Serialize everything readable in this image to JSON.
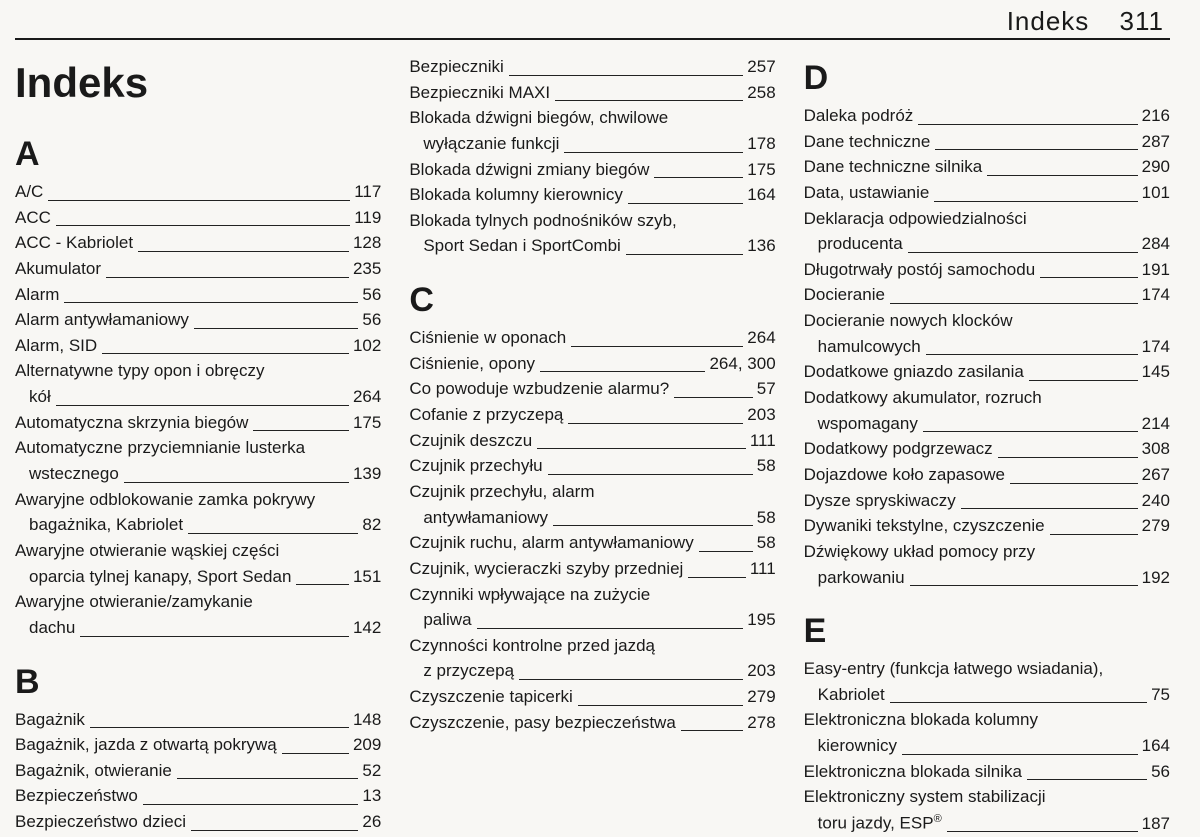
{
  "header": {
    "title": "Indeks",
    "page_number": "311"
  },
  "main_title": "Indeks",
  "columns": [
    {
      "groups": [
        {
          "letter": "A",
          "entries": [
            {
              "lines": [
                "A/C"
              ],
              "page": "117"
            },
            {
              "lines": [
                "ACC"
              ],
              "page": "119"
            },
            {
              "lines": [
                "ACC - Kabriolet"
              ],
              "page": "128"
            },
            {
              "lines": [
                "Akumulator"
              ],
              "page": "235"
            },
            {
              "lines": [
                "Alarm"
              ],
              "page": "56"
            },
            {
              "lines": [
                "Alarm antywłamaniowy"
              ],
              "page": "56"
            },
            {
              "lines": [
                "Alarm, SID"
              ],
              "page": "102"
            },
            {
              "lines": [
                "Alternatywne typy opon i obręczy",
                "kół"
              ],
              "page": "264"
            },
            {
              "lines": [
                "Automatyczna skrzynia biegów"
              ],
              "page": "175"
            },
            {
              "lines": [
                "Automatyczne przyciemnianie lusterka",
                "wstecznego"
              ],
              "page": "139"
            },
            {
              "lines": [
                "Awaryjne odblokowanie zamka pokrywy",
                "bagażnika, Kabriolet"
              ],
              "page": "82"
            },
            {
              "lines": [
                "Awaryjne otwieranie wąskiej części",
                "oparcia tylnej kanapy, Sport Sedan"
              ],
              "page": "151"
            },
            {
              "lines": [
                "Awaryjne otwieranie/zamykanie",
                "dachu"
              ],
              "page": "142"
            }
          ]
        },
        {
          "letter": "B",
          "entries": [
            {
              "lines": [
                "Bagażnik"
              ],
              "page": "148"
            },
            {
              "lines": [
                "Bagażnik, jazda z otwartą pokrywą"
              ],
              "page": "209"
            },
            {
              "lines": [
                "Bagażnik, otwieranie"
              ],
              "page": "52"
            },
            {
              "lines": [
                "Bezpieczeństwo"
              ],
              "page": "13"
            },
            {
              "lines": [
                "Bezpieczeństwo dzieci"
              ],
              "page": "26"
            }
          ]
        }
      ]
    },
    {
      "groups": [
        {
          "letter": "",
          "entries": [
            {
              "lines": [
                "Bezpieczniki"
              ],
              "page": "257"
            },
            {
              "lines": [
                "Bezpieczniki MAXI"
              ],
              "page": "258"
            },
            {
              "lines": [
                "Blokada dźwigni biegów, chwilowe",
                "wyłączanie funkcji"
              ],
              "page": "178"
            },
            {
              "lines": [
                "Blokada dźwigni zmiany biegów"
              ],
              "page": "175"
            },
            {
              "lines": [
                "Blokada kolumny kierownicy"
              ],
              "page": "164"
            },
            {
              "lines": [
                "Blokada tylnych podnośników szyb,",
                "Sport Sedan i SportCombi"
              ],
              "page": "136"
            }
          ]
        },
        {
          "letter": "C",
          "entries": [
            {
              "lines": [
                "Ciśnienie w oponach"
              ],
              "page": "264"
            },
            {
              "lines": [
                "Ciśnienie, opony"
              ],
              "page": "264, 300"
            },
            {
              "lines": [
                "Co powoduje wzbudzenie alarmu?"
              ],
              "page": "57"
            },
            {
              "lines": [
                "Cofanie z przyczepą"
              ],
              "page": "203"
            },
            {
              "lines": [
                "Czujnik deszczu"
              ],
              "page": "111"
            },
            {
              "lines": [
                "Czujnik przechyłu"
              ],
              "page": "58"
            },
            {
              "lines": [
                "Czujnik przechyłu, alarm",
                "antywłamaniowy"
              ],
              "page": "58"
            },
            {
              "lines": [
                "Czujnik ruchu, alarm antywłamaniowy"
              ],
              "page": "58"
            },
            {
              "lines": [
                "Czujnik, wycieraczki szyby przedniej"
              ],
              "page": "111"
            },
            {
              "lines": [
                "Czynniki wpływające na zużycie",
                "paliwa"
              ],
              "page": "195"
            },
            {
              "lines": [
                "Czynności kontrolne przed jazdą",
                "z przyczepą"
              ],
              "page": "203"
            },
            {
              "lines": [
                "Czyszczenie tapicerki"
              ],
              "page": "279"
            },
            {
              "lines": [
                "Czyszczenie, pasy bezpieczeństwa"
              ],
              "page": "278"
            }
          ]
        }
      ]
    },
    {
      "groups": [
        {
          "letter": "D",
          "entries": [
            {
              "lines": [
                "Daleka podróż"
              ],
              "page": "216"
            },
            {
              "lines": [
                "Dane techniczne"
              ],
              "page": "287"
            },
            {
              "lines": [
                "Dane techniczne silnika"
              ],
              "page": "290"
            },
            {
              "lines": [
                "Data, ustawianie"
              ],
              "page": "101"
            },
            {
              "lines": [
                "Deklaracja odpowiedzialności",
                "producenta"
              ],
              "page": "284"
            },
            {
              "lines": [
                "Długotrwały postój samochodu"
              ],
              "page": "191"
            },
            {
              "lines": [
                "Docieranie"
              ],
              "page": "174"
            },
            {
              "lines": [
                "Docieranie nowych klocków",
                "hamulcowych"
              ],
              "page": "174"
            },
            {
              "lines": [
                "Dodatkowe gniazdo zasilania"
              ],
              "page": "145"
            },
            {
              "lines": [
                "Dodatkowy akumulator, rozruch",
                "wspomagany"
              ],
              "page": "214"
            },
            {
              "lines": [
                "Dodatkowy podgrzewacz"
              ],
              "page": "308"
            },
            {
              "lines": [
                "Dojazdowe koło zapasowe"
              ],
              "page": "267"
            },
            {
              "lines": [
                "Dysze spryskiwaczy"
              ],
              "page": "240"
            },
            {
              "lines": [
                "Dywaniki tekstylne, czyszczenie"
              ],
              "page": "279"
            },
            {
              "lines": [
                "Dźwiękowy układ pomocy przy",
                "parkowaniu"
              ],
              "page": "192"
            }
          ]
        },
        {
          "letter": "E",
          "entries": [
            {
              "lines": [
                "Easy-entry (funkcja łatwego wsiadania),",
                "Kabriolet"
              ],
              "page": "75"
            },
            {
              "lines": [
                "Elektroniczna blokada kolumny",
                "kierownicy"
              ],
              "page": "164"
            },
            {
              "lines": [
                "Elektroniczna blokada silnika"
              ],
              "page": "56"
            },
            {
              "lines": [
                "Elektroniczny system stabilizacji",
                "toru jazdy, ESP<sup>®</sup>"
              ],
              "page": "187"
            }
          ]
        }
      ]
    }
  ]
}
